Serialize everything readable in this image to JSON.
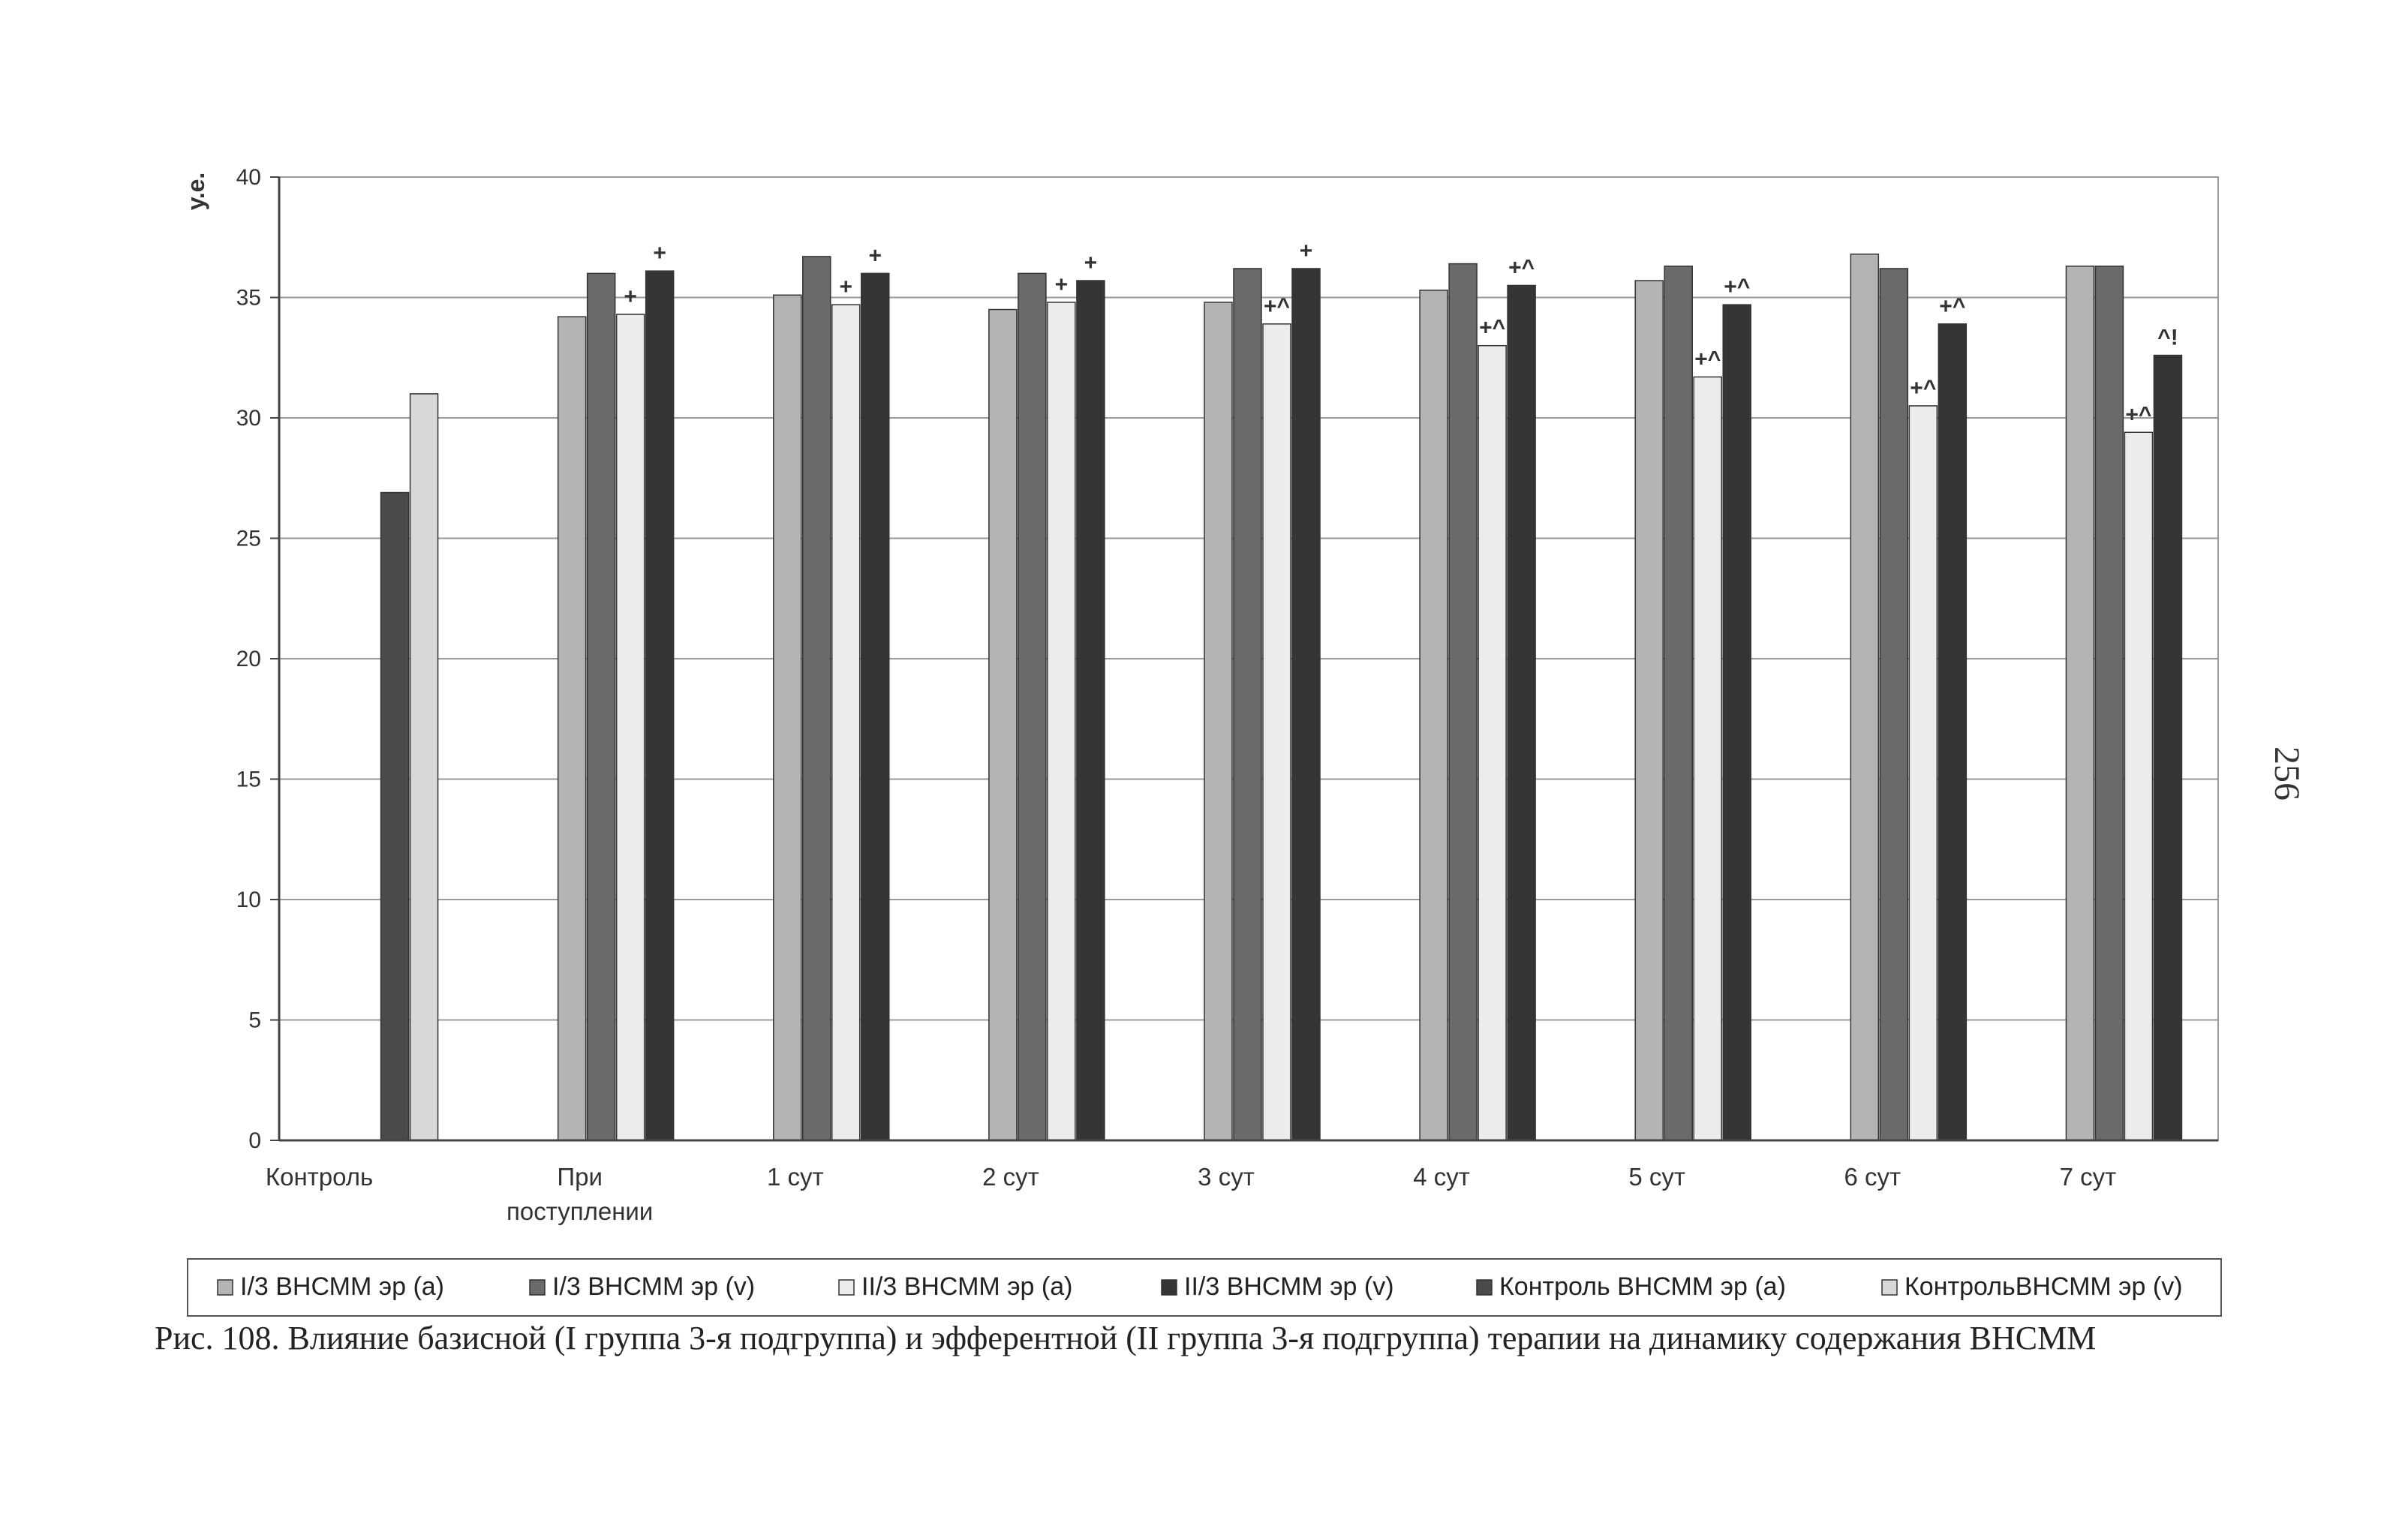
{
  "chart_data": {
    "type": "bar",
    "title": "",
    "ylabel": "у.е.",
    "xlabel": "",
    "ylim": [
      0,
      40
    ],
    "yticks": [
      0,
      5,
      10,
      15,
      20,
      25,
      30,
      35,
      40
    ],
    "grid": true,
    "legend_position": "bottom",
    "categories": [
      "Контроль",
      "При поступлении",
      "1 сут",
      "2 сут",
      "3 сут",
      "4 сут",
      "5 сут",
      "6 сут",
      "7 сут"
    ],
    "series": [
      {
        "name": "I/3 ВНСММ эр (а)",
        "color": "#b4b4b4",
        "values": [
          null,
          34.2,
          35.1,
          34.5,
          34.8,
          35.3,
          35.7,
          36.8,
          36.3
        ]
      },
      {
        "name": "I/3 ВНСММ эр (v)",
        "color": "#6a6a6a",
        "values": [
          null,
          36.0,
          36.7,
          36.0,
          36.2,
          36.4,
          36.3,
          36.2,
          36.3
        ]
      },
      {
        "name": "II/3 ВНСММ эр (а)",
        "color": "#ececec",
        "values": [
          null,
          34.3,
          34.7,
          34.8,
          33.9,
          33.0,
          31.7,
          30.5,
          29.4
        ]
      },
      {
        "name": "II/3 ВНСММ эр (v)",
        "color": "#353535",
        "values": [
          null,
          36.1,
          36.0,
          35.7,
          36.2,
          35.5,
          34.7,
          33.9,
          32.6
        ]
      },
      {
        "name": "Контроль ВНСММ эр (а)",
        "color": "#4a4a4a",
        "values": [
          26.9,
          null,
          null,
          null,
          null,
          null,
          null,
          null,
          null
        ]
      },
      {
        "name": "КонтрольВНСММ эр (v)",
        "color": "#d8d8d8",
        "values": [
          31.0,
          null,
          null,
          null,
          null,
          null,
          null,
          null,
          null
        ]
      }
    ],
    "annotations": [
      {
        "category": "При поступлении",
        "series": 2,
        "text": "+"
      },
      {
        "category": "При поступлении",
        "series": 3,
        "text": "+"
      },
      {
        "category": "1 сут",
        "series": 2,
        "text": "+"
      },
      {
        "category": "1 сут",
        "series": 3,
        "text": "+"
      },
      {
        "category": "2 сут",
        "series": 2,
        "text": "+"
      },
      {
        "category": "2 сут",
        "series": 3,
        "text": "+"
      },
      {
        "category": "3 сут",
        "series": 2,
        "text": "+^"
      },
      {
        "category": "3 сут",
        "series": 3,
        "text": "+"
      },
      {
        "category": "4 сут",
        "series": 2,
        "text": "+^"
      },
      {
        "category": "4 сут",
        "series": 3,
        "text": "+^"
      },
      {
        "category": "5 сут",
        "series": 2,
        "text": "+^"
      },
      {
        "category": "5 сут",
        "series": 3,
        "text": "+^"
      },
      {
        "category": "6 сут",
        "series": 2,
        "text": "+^"
      },
      {
        "category": "6 сут",
        "series": 3,
        "text": "+^"
      },
      {
        "category": "7 сут",
        "series": 2,
        "text": "+^"
      },
      {
        "category": "7 сут",
        "series": 3,
        "text": "^!"
      }
    ]
  },
  "caption": "Рис. 108. Влияние базисной (I группа 3-я подгруппа) и эфферентной (II группа 3-я подгруппа) терапии на динамику содержания ВНСММ",
  "page_number": "256"
}
